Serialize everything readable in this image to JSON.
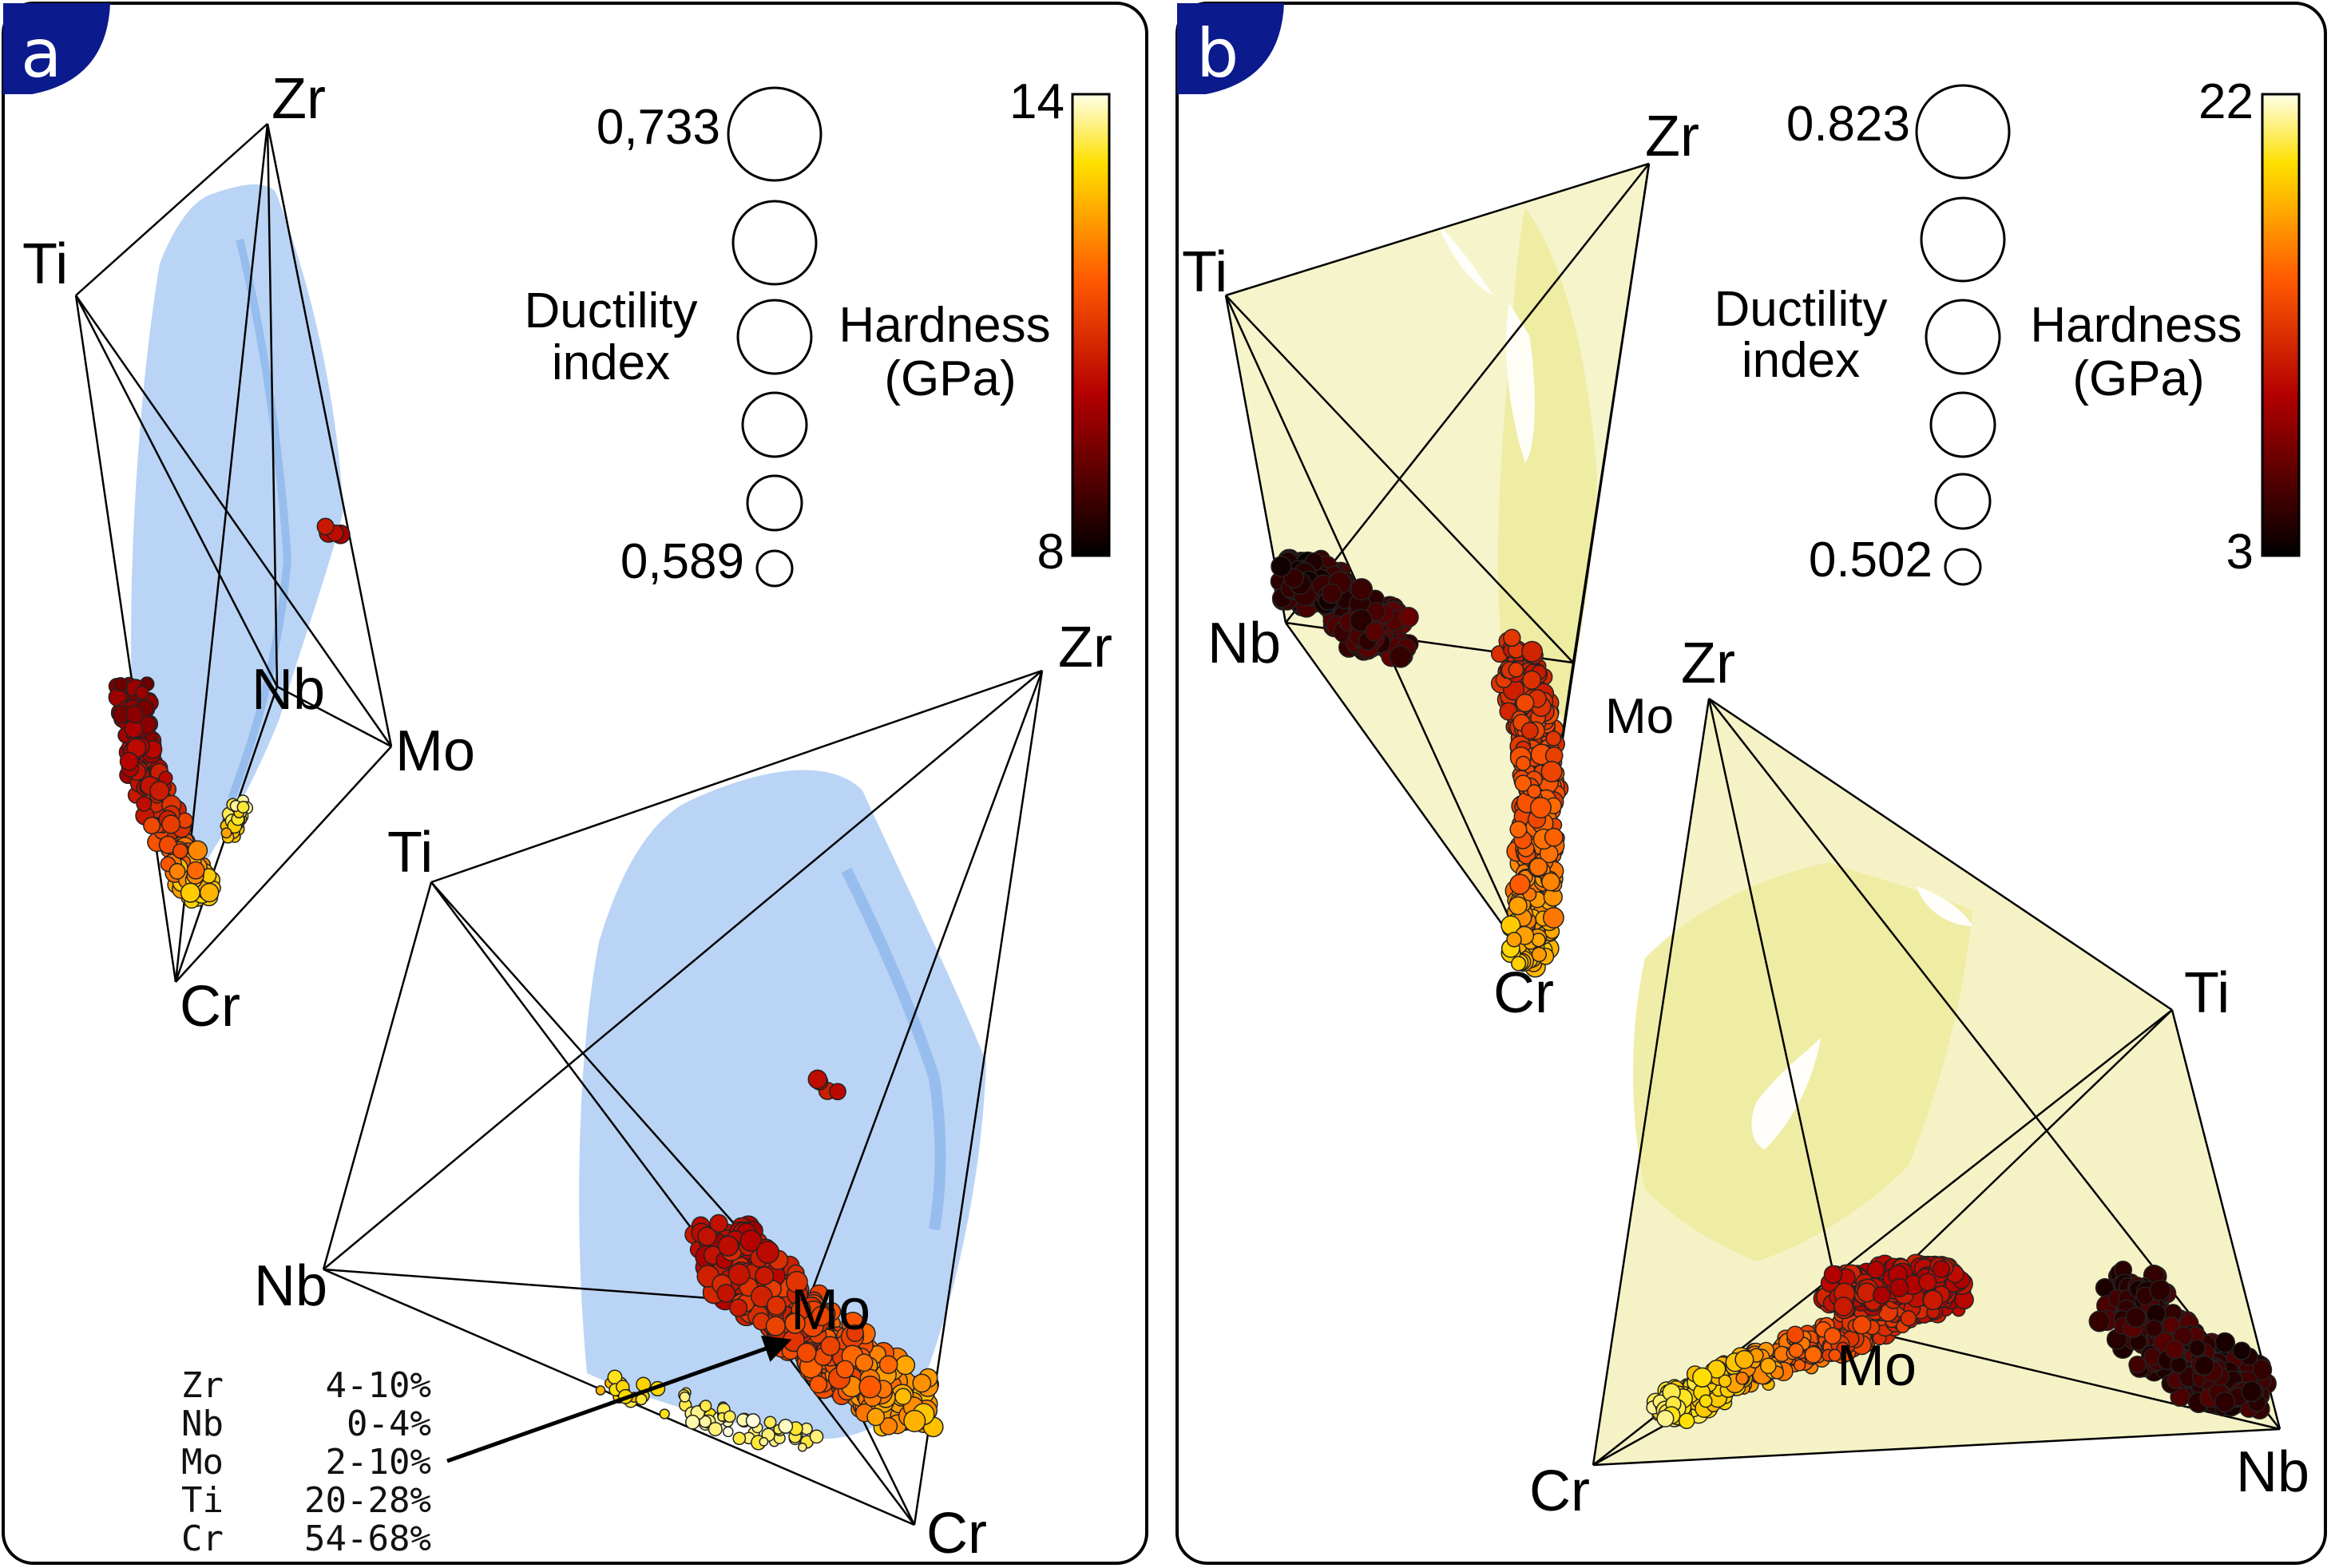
{
  "panels": [
    {
      "badge": "a",
      "ductility": {
        "label_line1": "Ductility",
        "label_line2": "index",
        "max": "0,733",
        "min": "0,589"
      },
      "hardness": {
        "label_line1": "Hardness",
        "label_line2": "(GPa)",
        "max": "14",
        "min": "8"
      },
      "colors": {
        "surface": "#a9c9f2",
        "badge": "#0b1a8c"
      },
      "upper": {
        "vertices": {
          "zr": "Zr",
          "ti": "Ti",
          "nb": "Nb",
          "mo": "Mo",
          "cr": "Cr"
        }
      },
      "lower": {
        "vertices": {
          "zr": "Zr",
          "ti": "Ti",
          "nb": "Nb",
          "mo": "Mo",
          "cr": "Cr"
        }
      },
      "composition_ranges": [
        {
          "element": "Zr",
          "range": "4-10%"
        },
        {
          "element": "Nb",
          "range": "0-4%"
        },
        {
          "element": "Mo",
          "range": "2-10%"
        },
        {
          "element": "Ti",
          "range": "20-28%"
        },
        {
          "element": "Cr",
          "range": "54-68%"
        }
      ]
    },
    {
      "badge": "b",
      "ductility": {
        "label_line1": "Ductility",
        "label_line2": "index",
        "max": "0.823",
        "min": "0.502"
      },
      "hardness": {
        "label_line1": "Hardness",
        "label_line2": "(GPa)",
        "max": "22",
        "min": "3"
      },
      "colors": {
        "surface": "#eeeba0",
        "badge": "#0b1a8c"
      },
      "upper": {
        "vertices": {
          "zr": "Zr",
          "ti": "Ti",
          "nb": "Nb",
          "mo": "Mo",
          "cr": "Cr"
        }
      },
      "lower": {
        "vertices": {
          "zr": "Zr",
          "ti": "Ti",
          "nb": "Nb",
          "mo": "Mo",
          "cr": "Cr"
        }
      }
    }
  ]
}
